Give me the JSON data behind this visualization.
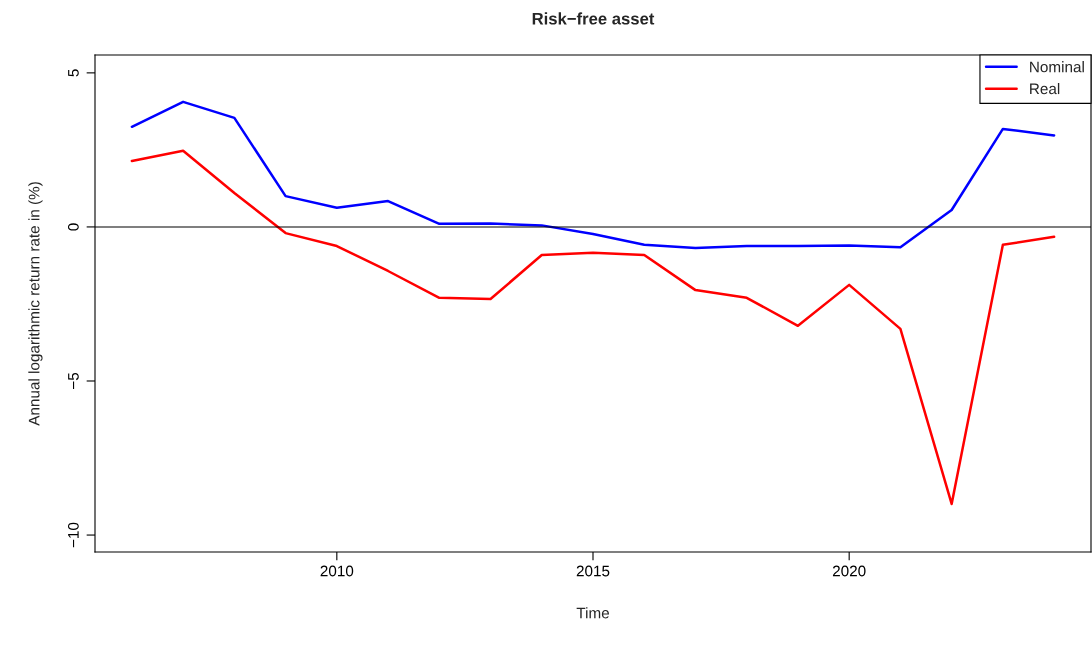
{
  "chart_data": {
    "type": "line",
    "title": "Risk−free asset",
    "xlabel": "Time",
    "ylabel": "Annual logarithmic return rate in (%)",
    "x": [
      2006,
      2007,
      2008,
      2009,
      2010,
      2011,
      2012,
      2013,
      2014,
      2015,
      2016,
      2017,
      2018,
      2019,
      2020,
      2021,
      2022,
      2023,
      2024
    ],
    "series": [
      {
        "name": "Nominal",
        "color": "#0000ff",
        "values": [
          3.25,
          4.06,
          3.54,
          1.0,
          0.62,
          0.84,
          0.1,
          0.11,
          0.05,
          -0.23,
          -0.58,
          -0.68,
          -0.62,
          -0.62,
          -0.6,
          -0.66,
          0.55,
          3.18,
          2.97
        ]
      },
      {
        "name": "Real",
        "color": "#ff0000",
        "values": [
          2.14,
          2.47,
          1.1,
          -0.2,
          -0.62,
          -1.43,
          -2.3,
          -2.34,
          -0.91,
          -0.84,
          -0.91,
          -2.05,
          -2.3,
          -3.21,
          -1.88,
          -3.31,
          -8.99,
          -0.58,
          -0.32
        ]
      }
    ],
    "xlim": [
      2005.28,
      2024.72
    ],
    "xticks": [
      2010,
      2015,
      2020
    ],
    "ylim": [
      -10.55,
      5.58
    ],
    "yticks": [
      {
        "value": -10,
        "label": "−10"
      },
      {
        "value": -5,
        "label": "−5"
      },
      0,
      5
    ],
    "ref_lines": [
      {
        "axis": "y",
        "value": 0,
        "color": "#000000"
      }
    ],
    "grid": false,
    "legend": "top right",
    "line_style": "solid",
    "marker": "none"
  }
}
